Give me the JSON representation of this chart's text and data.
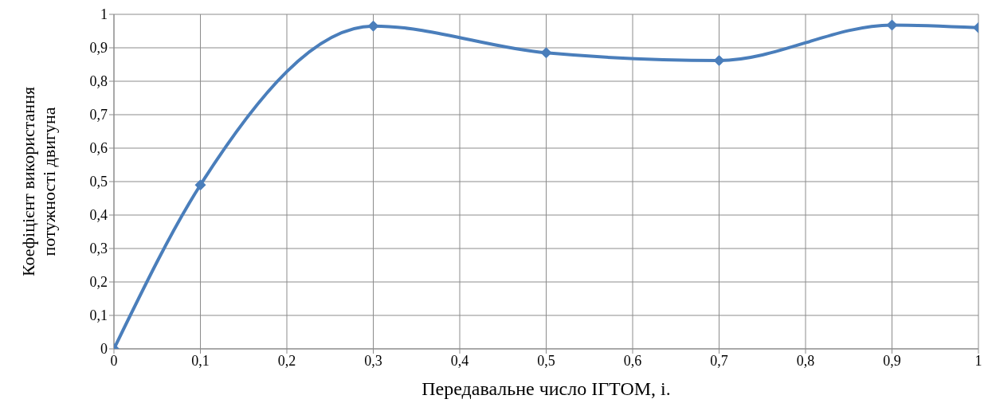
{
  "chart_data": {
    "type": "line",
    "xlabel": "Передавальне число ІГТОМ, i.",
    "ylabel": "Коефіцієнт використання\nпотужності двигуна",
    "x": [
      0,
      0.1,
      0.3,
      0.5,
      0.7,
      0.9,
      1
    ],
    "series": [
      {
        "color": "#4a7ebb",
        "values": [
          0,
          0.49,
          0.965,
          0.885,
          0.862,
          0.968,
          0.96
        ]
      }
    ],
    "xlim": [
      0,
      1
    ],
    "ylim": [
      0,
      1
    ],
    "xticks": [
      0,
      {
        "value": 0.1,
        "label": "0,1"
      },
      {
        "value": 0.2,
        "label": "0,2"
      },
      {
        "value": 0.3,
        "label": "0,3"
      },
      {
        "value": 0.4,
        "label": "0,4"
      },
      {
        "value": 0.5,
        "label": "0,5"
      },
      {
        "value": 0.6,
        "label": "0,6"
      },
      {
        "value": 0.7,
        "label": "0,7"
      },
      {
        "value": 0.8,
        "label": "0,8"
      },
      {
        "value": 0.9,
        "label": "0,9"
      },
      1
    ],
    "yticks": [
      0,
      {
        "value": 0.1,
        "label": "0,1"
      },
      {
        "value": 0.2,
        "label": "0,2"
      },
      {
        "value": 0.3,
        "label": "0,3"
      },
      {
        "value": 0.4,
        "label": "0,4"
      },
      {
        "value": 0.5,
        "label": "0,5"
      },
      {
        "value": 0.6,
        "label": "0,6"
      },
      {
        "value": 0.7,
        "label": "0,7"
      },
      {
        "value": 0.8,
        "label": "0,8"
      },
      {
        "value": 0.9,
        "label": "0,9"
      },
      1
    ],
    "grid": true,
    "marker": "diamond",
    "line_style": "solid",
    "legend": false
  }
}
